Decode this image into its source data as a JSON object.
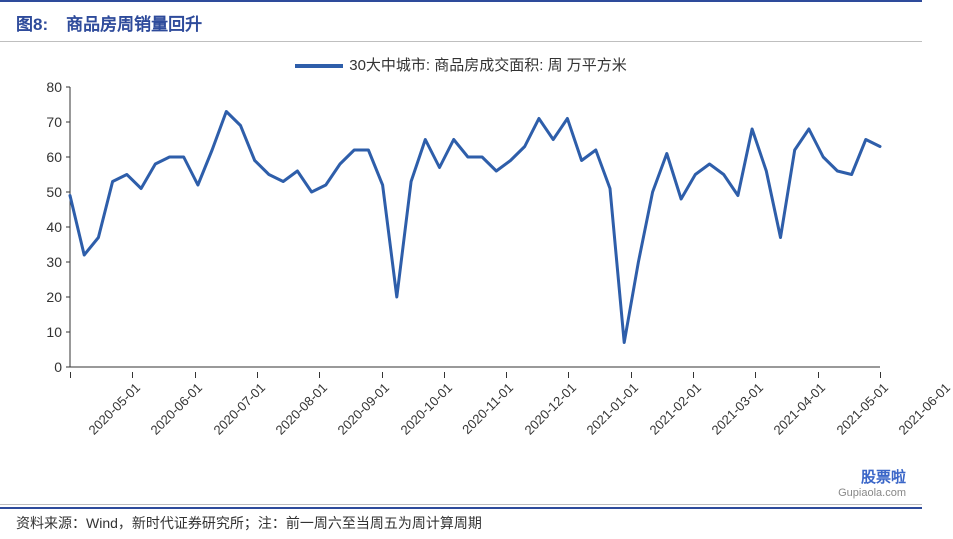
{
  "colors": {
    "accent": "#2e4b9b",
    "title_text": "#2e4b9b",
    "body_text": "#333333",
    "tick_text": "#333333",
    "grid": "#bfbfbf",
    "axis": "#333333",
    "divider_thin": "#bfbfbf",
    "divider_thick": "#2e4b9b",
    "line": "#2e5eaa",
    "watermark_top": "#3a66c8",
    "watermark_bot": "#888888",
    "background": "#ffffff"
  },
  "header": {
    "figure_label": "图8:",
    "title": "商品房周销量回升"
  },
  "legend": {
    "label": "30大中城市: 商品房成交面积: 周  万平方米"
  },
  "chart": {
    "type": "line",
    "ylim": [
      0,
      80
    ],
    "yticks": [
      0,
      10,
      20,
      30,
      40,
      50,
      60,
      70,
      80
    ],
    "line_width": 3,
    "grid_on": false,
    "x_categories": [
      "2020-05-01",
      "2020-06-01",
      "2020-07-01",
      "2020-08-01",
      "2020-09-01",
      "2020-10-01",
      "2020-11-01",
      "2020-12-01",
      "2021-01-01",
      "2021-02-01",
      "2021-03-01",
      "2021-04-01",
      "2021-05-01",
      "2021-06-01"
    ],
    "series": [
      {
        "name": "weekly_sales",
        "values": [
          49,
          32,
          37,
          53,
          55,
          51,
          58,
          60,
          60,
          52,
          62,
          73,
          69,
          59,
          55,
          53,
          56,
          50,
          52,
          58,
          62,
          62,
          52,
          20,
          53,
          65,
          57,
          65,
          60,
          60,
          56,
          59,
          63,
          71,
          65,
          71,
          59,
          62,
          51,
          7,
          30,
          50,
          61,
          48,
          55,
          58,
          55,
          49,
          68,
          56,
          37,
          62,
          68,
          60,
          56,
          55,
          65,
          63
        ]
      }
    ]
  },
  "source": {
    "text": "资料来源：Wind，新时代证券研究所；注：前一周六至当周五为周计算周期"
  },
  "watermark": {
    "top": "股票啦",
    "bottom": "Gupiaola.com"
  }
}
